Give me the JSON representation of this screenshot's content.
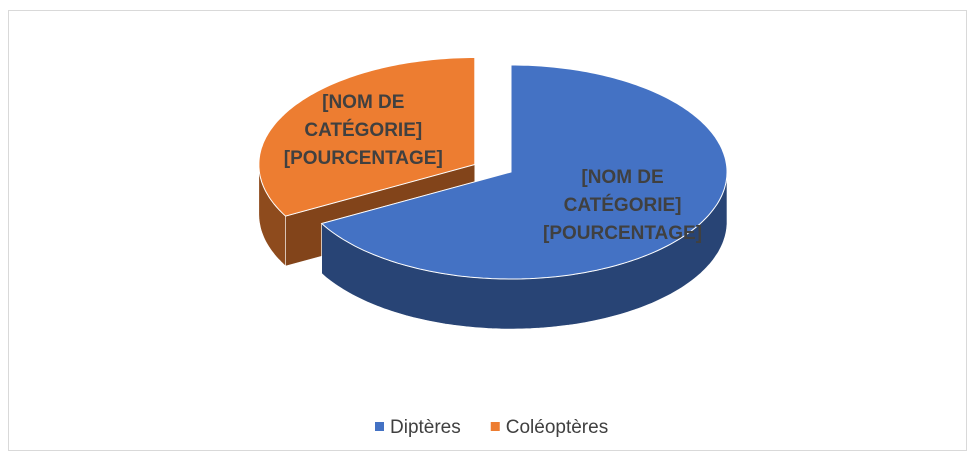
{
  "chart_data": {
    "type": "pie",
    "categories": [
      "Diptères",
      "Coléoptères"
    ],
    "values": [
      67,
      33
    ],
    "value_labels": [
      [
        "[NOM DE",
        "CATÉGORIE]",
        "[POURCENTAGE]"
      ],
      [
        "[NOM DE",
        "CATÉGORIE]",
        "[POURCENTAGE]"
      ]
    ],
    "colors": [
      "#4472c4",
      "#ed7d31"
    ],
    "legend": "bottom"
  }
}
